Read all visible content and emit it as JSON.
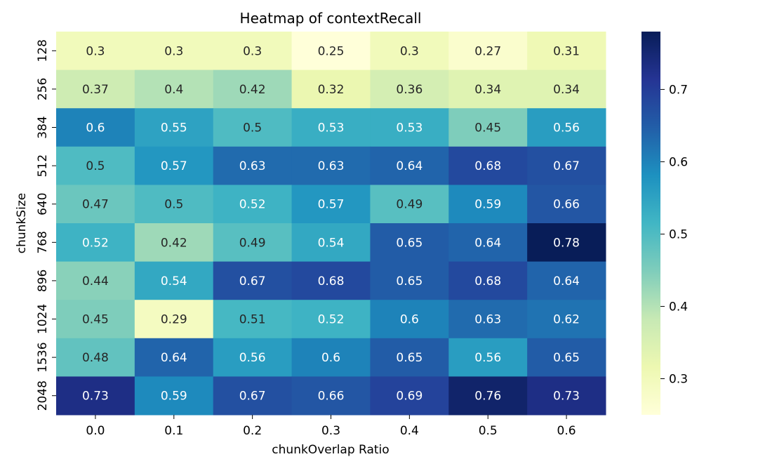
{
  "chart_data": {
    "type": "heatmap",
    "title": "Heatmap of contextRecall",
    "xlabel": "chunkOverlap Ratio",
    "ylabel": "chunkSize",
    "x_categories": [
      "0.0",
      "0.1",
      "0.2",
      "0.3",
      "0.4",
      "0.5",
      "0.6"
    ],
    "y_categories": [
      "128",
      "256",
      "384",
      "512",
      "640",
      "768",
      "896",
      "1024",
      "1536",
      "2048"
    ],
    "values": [
      [
        0.3,
        0.3,
        0.3,
        0.25,
        0.3,
        0.27,
        0.31
      ],
      [
        0.37,
        0.4,
        0.42,
        0.32,
        0.36,
        0.34,
        0.34
      ],
      [
        0.6,
        0.55,
        0.5,
        0.53,
        0.53,
        0.45,
        0.56
      ],
      [
        0.5,
        0.57,
        0.63,
        0.63,
        0.64,
        0.68,
        0.67
      ],
      [
        0.47,
        0.5,
        0.52,
        0.57,
        0.49,
        0.59,
        0.66
      ],
      [
        0.52,
        0.42,
        0.49,
        0.54,
        0.65,
        0.64,
        0.78
      ],
      [
        0.44,
        0.54,
        0.67,
        0.68,
        0.65,
        0.68,
        0.64
      ],
      [
        0.45,
        0.29,
        0.51,
        0.52,
        0.6,
        0.63,
        0.62
      ],
      [
        0.48,
        0.64,
        0.56,
        0.6,
        0.65,
        0.56,
        0.65
      ],
      [
        0.73,
        0.59,
        0.67,
        0.66,
        0.69,
        0.76,
        0.73
      ]
    ],
    "annotations": [
      [
        "0.3",
        "0.3",
        "0.3",
        "0.25",
        "0.3",
        "0.27",
        "0.31"
      ],
      [
        "0.37",
        "0.4",
        "0.42",
        "0.32",
        "0.36",
        "0.34",
        "0.34"
      ],
      [
        "0.6",
        "0.55",
        "0.5",
        "0.53",
        "0.53",
        "0.45",
        "0.56"
      ],
      [
        "0.5",
        "0.57",
        "0.63",
        "0.63",
        "0.64",
        "0.68",
        "0.67"
      ],
      [
        "0.47",
        "0.5",
        "0.52",
        "0.57",
        "0.49",
        "0.59",
        "0.66"
      ],
      [
        "0.52",
        "0.42",
        "0.49",
        "0.54",
        "0.65",
        "0.64",
        "0.78"
      ],
      [
        "0.44",
        "0.54",
        "0.67",
        "0.68",
        "0.65",
        "0.68",
        "0.64"
      ],
      [
        "0.45",
        "0.29",
        "0.51",
        "0.52",
        "0.6",
        "0.63",
        "0.62"
      ],
      [
        "0.48",
        "0.64",
        "0.56",
        "0.6",
        "0.65",
        "0.56",
        "0.65"
      ],
      [
        "0.73",
        "0.59",
        "0.67",
        "0.66",
        "0.69",
        "0.76",
        "0.73"
      ]
    ],
    "colorbar": {
      "colormap": "YlGnBu",
      "vmin": 0.25,
      "vmax": 0.78,
      "ticks": [
        0.3,
        0.4,
        0.5,
        0.6,
        0.7
      ],
      "tick_labels": [
        "0.3",
        "0.4",
        "0.5",
        "0.6",
        "0.7"
      ]
    },
    "colormap_stops": [
      "#ffffd9",
      "#edf8b1",
      "#c7e9b4",
      "#7fcdbb",
      "#41b6c4",
      "#1d91c0",
      "#225ea8",
      "#253494",
      "#081d58"
    ],
    "dark_text_color": "#262626",
    "light_text_color": "#ffffff",
    "light_text_threshold": 0.5,
    "axis_color": "#000000"
  }
}
